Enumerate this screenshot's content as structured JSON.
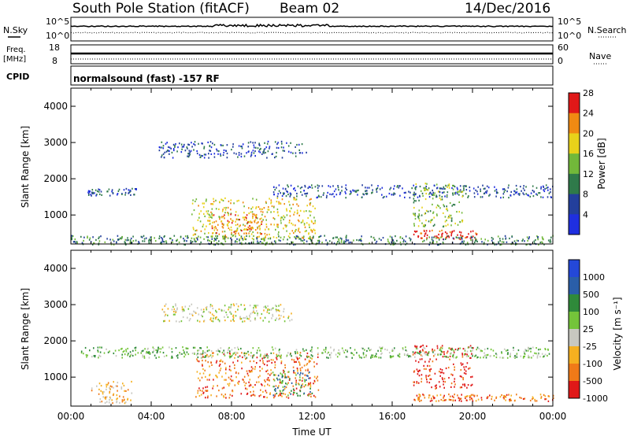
{
  "header": {
    "station": "South Pole Station (fitACF)",
    "beam": "Beam 02",
    "date": "14/Dec/2016"
  },
  "left_labels": {
    "nsky": "N.Sky",
    "freq": "Freq.",
    "freq_unit": "[MHz]",
    "cpid": "CPID"
  },
  "right_labels": {
    "nsearch": "N.Search",
    "nave": "Nave"
  },
  "cpid_text": "normalsound (fast) -157 RF",
  "chart_data": [
    {
      "type": "line",
      "name": "noise",
      "y_ticks_left": [
        "10^5",
        "10^0"
      ],
      "y_ticks_right": [
        "10^5",
        "10^0"
      ]
    },
    {
      "type": "line",
      "name": "frequency",
      "y_ticks_left": [
        "18",
        "8"
      ],
      "y_ticks_right": [
        "60",
        "0"
      ]
    },
    {
      "type": "heatmap",
      "name": "power",
      "ylabel": "Slant Range [km]",
      "ylim": [
        200,
        4500
      ],
      "yticks": [
        "1000",
        "2000",
        "3000",
        "4000"
      ],
      "colorbar_label": "Power [dB]",
      "colorbar_ticks": [
        "4",
        "8",
        "12",
        "16",
        "20",
        "24",
        "28"
      ],
      "colorbar_colors": [
        "#1f2fe0",
        "#233f9c",
        "#2f7a4a",
        "#72b83a",
        "#e8d21a",
        "#f08a12",
        "#e01818"
      ],
      "bands": [
        {
          "t0": 0.8,
          "t1": 3.3,
          "r0": 1550,
          "r1": 1750,
          "level": 1
        },
        {
          "t0": 4.3,
          "t1": 11.8,
          "r0": 2600,
          "r1": 3050,
          "level": 1
        },
        {
          "t0": 10.0,
          "t1": 24.0,
          "r0": 1500,
          "r1": 1850,
          "level": 1
        },
        {
          "t0": 6.0,
          "t1": 12.2,
          "r0": 350,
          "r1": 1500,
          "level": 4
        },
        {
          "t0": 7.0,
          "t1": 9.5,
          "r0": 500,
          "r1": 1050,
          "level": 5
        },
        {
          "t0": 17.0,
          "t1": 20.2,
          "r0": 350,
          "r1": 600,
          "level": 6
        },
        {
          "t0": 17.0,
          "t1": 19.5,
          "r0": 700,
          "r1": 1900,
          "level": 3
        },
        {
          "t0": 0.0,
          "t1": 24.0,
          "r0": 200,
          "r1": 450,
          "level": 2
        }
      ]
    },
    {
      "type": "heatmap",
      "name": "velocity",
      "ylabel": "Slant Range [km]",
      "xlabel": "Time UT",
      "ylim": [
        200,
        4500
      ],
      "yticks": [
        "1000",
        "2000",
        "3000",
        "4000"
      ],
      "xticks": [
        "00:00",
        "04:00",
        "08:00",
        "12:00",
        "16:00",
        "20:00",
        "00:00"
      ],
      "colorbar_label": "Velocity [m s⁻¹]",
      "colorbar_ticks": [
        "1000",
        "500",
        "100",
        "25",
        "-25",
        "-100",
        "-500",
        "-1000"
      ],
      "colorbar_colors": [
        "#2448d8",
        "#2a5ea8",
        "#2f8a3a",
        "#74c43a",
        "#c8c8c0",
        "#f5b020",
        "#f07a18",
        "#e01818"
      ],
      "bands": [
        {
          "t0": 4.5,
          "t1": 11.0,
          "r0": 2550,
          "r1": 3050,
          "level": 4
        },
        {
          "t0": 6.2,
          "t1": 12.3,
          "r0": 450,
          "r1": 1700,
          "level": 6
        },
        {
          "t0": 10.0,
          "t1": 12.0,
          "r0": 500,
          "r1": 1200,
          "level": 2
        },
        {
          "t0": 17.0,
          "t1": 20.0,
          "r0": 700,
          "r1": 1900,
          "level": 7
        },
        {
          "t0": 17.0,
          "t1": 24.0,
          "r0": 350,
          "r1": 550,
          "level": 6
        },
        {
          "t0": 1.0,
          "t1": 3.0,
          "r0": 300,
          "r1": 900,
          "level": 5
        },
        {
          "t0": 0.5,
          "t1": 24.0,
          "r0": 1550,
          "r1": 1850,
          "level": 3
        }
      ]
    }
  ]
}
